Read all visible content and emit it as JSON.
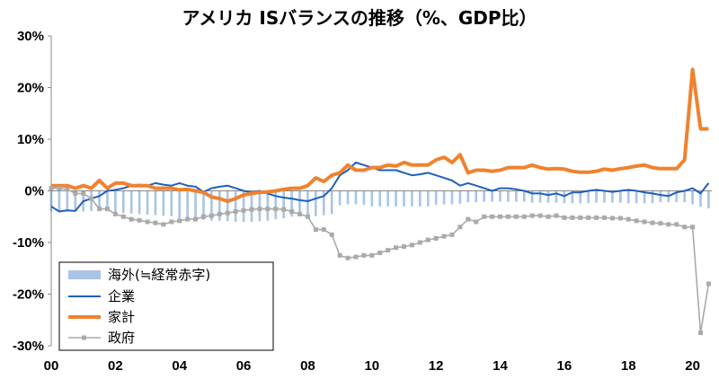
{
  "chart_data": {
    "type": "line",
    "title": "アメリカ ISバランスの推移（%、GDP比）",
    "xlabel": "",
    "ylabel": "",
    "ylim": [
      -30,
      30
    ],
    "xlim": [
      2000,
      2020.6
    ],
    "y_ticks": [
      30,
      20,
      10,
      0,
      -10,
      -20,
      -30
    ],
    "y_tick_labels": [
      "30%",
      "20%",
      "10%",
      "0%",
      "-10%",
      "-20%",
      "-30%"
    ],
    "x_ticks": [
      2000,
      2002,
      2004,
      2006,
      2008,
      2010,
      2012,
      2014,
      2016,
      2018,
      2020
    ],
    "x_tick_labels": [
      "00",
      "02",
      "04",
      "06",
      "08",
      "10",
      "12",
      "14",
      "16",
      "18",
      "20"
    ],
    "grid": false,
    "legend": {
      "placement": "bottom-left"
    },
    "series": [
      {
        "name": "海外(≒経常赤字)",
        "kind": "bar",
        "color": "#a9c4e4",
        "x": [
          2000.0,
          2000.25,
          2000.5,
          2000.75,
          2001.0,
          2001.25,
          2001.5,
          2001.75,
          2002.0,
          2002.25,
          2002.5,
          2002.75,
          2003.0,
          2003.25,
          2003.5,
          2003.75,
          2004.0,
          2004.25,
          2004.5,
          2004.75,
          2005.0,
          2005.25,
          2005.5,
          2005.75,
          2006.0,
          2006.25,
          2006.5,
          2006.75,
          2007.0,
          2007.25,
          2007.5,
          2007.75,
          2008.0,
          2008.25,
          2008.5,
          2008.75,
          2009.0,
          2009.25,
          2009.5,
          2009.75,
          2010.0,
          2010.25,
          2010.5,
          2010.75,
          2011.0,
          2011.25,
          2011.5,
          2011.75,
          2012.0,
          2012.25,
          2012.5,
          2012.75,
          2013.0,
          2013.25,
          2013.5,
          2013.75,
          2014.0,
          2014.25,
          2014.5,
          2014.75,
          2015.0,
          2015.25,
          2015.5,
          2015.75,
          2016.0,
          2016.25,
          2016.5,
          2016.75,
          2017.0,
          2017.25,
          2017.5,
          2017.75,
          2018.0,
          2018.25,
          2018.5,
          2018.75,
          2019.0,
          2019.25,
          2019.5,
          2019.75,
          2020.0,
          2020.25,
          2020.5
        ],
        "values": [
          -4.0,
          -4.0,
          -4.0,
          -4.0,
          -4.0,
          -3.9,
          -3.9,
          -3.8,
          -4.2,
          -4.3,
          -4.4,
          -4.5,
          -4.6,
          -4.7,
          -4.8,
          -4.9,
          -5.3,
          -5.4,
          -5.5,
          -5.6,
          -5.8,
          -5.8,
          -5.9,
          -6.0,
          -6.0,
          -6.0,
          -5.9,
          -5.8,
          -5.5,
          -5.3,
          -5.0,
          -4.8,
          -4.9,
          -4.9,
          -4.7,
          -4.5,
          -2.8,
          -2.6,
          -2.6,
          -2.7,
          -3.0,
          -3.0,
          -3.0,
          -3.0,
          -3.0,
          -3.0,
          -3.0,
          -3.0,
          -2.7,
          -2.6,
          -2.6,
          -2.5,
          -2.2,
          -2.2,
          -2.1,
          -2.1,
          -2.1,
          -2.1,
          -2.1,
          -2.1,
          -2.3,
          -2.3,
          -2.3,
          -2.3,
          -2.4,
          -2.4,
          -2.4,
          -2.4,
          -2.3,
          -2.3,
          -2.3,
          -2.3,
          -2.4,
          -2.4,
          -2.4,
          -2.4,
          -2.2,
          -2.2,
          -2.2,
          -2.2,
          -2.6,
          -3.1,
          -3.4
        ]
      },
      {
        "name": "企業",
        "kind": "line",
        "color": "#1f5fbd",
        "x": [
          2000.0,
          2000.25,
          2000.5,
          2000.75,
          2001.0,
          2001.25,
          2001.5,
          2001.75,
          2002.0,
          2002.25,
          2002.5,
          2002.75,
          2003.0,
          2003.25,
          2003.5,
          2003.75,
          2004.0,
          2004.25,
          2004.5,
          2004.75,
          2005.0,
          2005.25,
          2005.5,
          2005.75,
          2006.0,
          2006.25,
          2006.5,
          2006.75,
          2007.0,
          2007.25,
          2007.5,
          2007.75,
          2008.0,
          2008.25,
          2008.5,
          2008.75,
          2009.0,
          2009.25,
          2009.5,
          2009.75,
          2010.0,
          2010.25,
          2010.5,
          2010.75,
          2011.0,
          2011.25,
          2011.5,
          2011.75,
          2012.0,
          2012.25,
          2012.5,
          2012.75,
          2013.0,
          2013.25,
          2013.5,
          2013.75,
          2014.0,
          2014.25,
          2014.5,
          2014.75,
          2015.0,
          2015.25,
          2015.5,
          2015.75,
          2016.0,
          2016.25,
          2016.5,
          2016.75,
          2017.0,
          2017.25,
          2017.5,
          2017.75,
          2018.0,
          2018.25,
          2018.5,
          2018.75,
          2019.0,
          2019.25,
          2019.5,
          2019.75,
          2020.0,
          2020.25,
          2020.5
        ],
        "values": [
          -3.0,
          -4.0,
          -3.8,
          -3.9,
          -2.0,
          -1.5,
          -1.0,
          0.0,
          0.2,
          0.5,
          1.0,
          1.2,
          1.0,
          1.5,
          1.2,
          1.0,
          1.5,
          1.0,
          0.8,
          -0.2,
          0.5,
          0.8,
          1.0,
          0.5,
          0.0,
          -0.3,
          0.0,
          -0.5,
          -1.0,
          -1.3,
          -1.5,
          -1.8,
          -2.0,
          -1.5,
          -1.0,
          0.5,
          3.0,
          4.0,
          5.5,
          5.0,
          4.5,
          4.0,
          4.0,
          4.0,
          3.5,
          3.0,
          3.2,
          3.5,
          3.0,
          2.5,
          2.0,
          1.0,
          1.5,
          1.0,
          0.5,
          0.0,
          0.5,
          0.5,
          0.3,
          0.0,
          -0.5,
          -0.5,
          -0.8,
          -0.5,
          -1.0,
          -0.3,
          -0.3,
          0.0,
          0.2,
          0.0,
          -0.2,
          0.0,
          0.2,
          0.0,
          -0.3,
          -0.5,
          -0.8,
          -1.0,
          -0.3,
          0.0,
          0.5,
          -0.5,
          1.5
        ]
      },
      {
        "name": "家計",
        "kind": "line",
        "color": "#f0822e",
        "x": [
          2000.0,
          2000.25,
          2000.5,
          2000.75,
          2001.0,
          2001.25,
          2001.5,
          2001.75,
          2002.0,
          2002.25,
          2002.5,
          2002.75,
          2003.0,
          2003.25,
          2003.5,
          2003.75,
          2004.0,
          2004.25,
          2004.5,
          2004.75,
          2005.0,
          2005.25,
          2005.5,
          2005.75,
          2006.0,
          2006.25,
          2006.5,
          2006.75,
          2007.0,
          2007.25,
          2007.5,
          2007.75,
          2008.0,
          2008.25,
          2008.5,
          2008.75,
          2009.0,
          2009.25,
          2009.5,
          2009.75,
          2010.0,
          2010.25,
          2010.5,
          2010.75,
          2011.0,
          2011.25,
          2011.5,
          2011.75,
          2012.0,
          2012.25,
          2012.5,
          2012.75,
          2013.0,
          2013.25,
          2013.5,
          2013.75,
          2014.0,
          2014.25,
          2014.5,
          2014.75,
          2015.0,
          2015.25,
          2015.5,
          2015.75,
          2016.0,
          2016.25,
          2016.5,
          2016.75,
          2017.0,
          2017.25,
          2017.5,
          2017.75,
          2018.0,
          2018.25,
          2018.5,
          2018.75,
          2019.0,
          2019.25,
          2019.5,
          2019.75,
          2020.0,
          2020.25,
          2020.5
        ],
        "values": [
          1.0,
          1.0,
          1.0,
          0.5,
          1.0,
          0.5,
          2.0,
          0.5,
          1.5,
          1.5,
          1.0,
          1.0,
          1.0,
          0.5,
          0.5,
          0.5,
          0.2,
          0.3,
          0.0,
          -0.3,
          -1.2,
          -1.5,
          -2.0,
          -1.5,
          -0.8,
          -0.5,
          -0.3,
          -0.2,
          0.0,
          0.3,
          0.5,
          0.5,
          1.0,
          2.5,
          1.8,
          3.0,
          3.5,
          5.0,
          4.0,
          4.0,
          4.5,
          4.5,
          5.0,
          4.8,
          5.5,
          5.0,
          5.0,
          5.0,
          6.0,
          6.5,
          5.5,
          7.0,
          3.5,
          4.0,
          4.0,
          3.8,
          4.0,
          4.5,
          4.5,
          4.5,
          5.0,
          4.5,
          4.2,
          4.3,
          4.2,
          3.8,
          3.6,
          3.6,
          3.8,
          4.2,
          4.0,
          4.3,
          4.5,
          4.8,
          5.0,
          4.5,
          4.3,
          4.3,
          4.3,
          6.0,
          23.5,
          12.0,
          12.0
        ]
      },
      {
        "name": "政府",
        "kind": "line",
        "color": "#aaaaaa",
        "x": [
          2000.0,
          2000.25,
          2000.5,
          2000.75,
          2001.0,
          2001.25,
          2001.5,
          2001.75,
          2002.0,
          2002.25,
          2002.5,
          2002.75,
          2003.0,
          2003.25,
          2003.5,
          2003.75,
          2004.0,
          2004.25,
          2004.5,
          2004.75,
          2005.0,
          2005.25,
          2005.5,
          2005.75,
          2006.0,
          2006.25,
          2006.5,
          2006.75,
          2007.0,
          2007.25,
          2007.5,
          2007.75,
          2008.0,
          2008.25,
          2008.5,
          2008.75,
          2009.0,
          2009.25,
          2009.5,
          2009.75,
          2010.0,
          2010.25,
          2010.5,
          2010.75,
          2011.0,
          2011.25,
          2011.5,
          2011.75,
          2012.0,
          2012.25,
          2012.5,
          2012.75,
          2013.0,
          2013.25,
          2013.5,
          2013.75,
          2014.0,
          2014.25,
          2014.5,
          2014.75,
          2015.0,
          2015.25,
          2015.5,
          2015.75,
          2016.0,
          2016.25,
          2016.5,
          2016.75,
          2017.0,
          2017.25,
          2017.5,
          2017.75,
          2018.0,
          2018.25,
          2018.5,
          2018.75,
          2019.0,
          2019.25,
          2019.5,
          2019.75,
          2020.0,
          2020.25,
          2020.5
        ],
        "values": [
          0.5,
          0.5,
          0.3,
          -0.5,
          -0.5,
          -1.5,
          -3.5,
          -3.5,
          -4.5,
          -5.0,
          -5.5,
          -5.7,
          -6.0,
          -6.2,
          -6.5,
          -6.0,
          -5.8,
          -5.5,
          -5.5,
          -5.0,
          -4.8,
          -4.5,
          -4.3,
          -4.0,
          -3.8,
          -3.6,
          -3.5,
          -3.5,
          -3.5,
          -3.6,
          -4.0,
          -4.5,
          -5.0,
          -7.5,
          -7.5,
          -8.5,
          -12.5,
          -13.0,
          -12.8,
          -12.5,
          -12.5,
          -12.0,
          -11.5,
          -11.0,
          -10.8,
          -10.5,
          -10.0,
          -9.5,
          -9.2,
          -8.8,
          -8.5,
          -7.0,
          -5.5,
          -6.0,
          -5.0,
          -5.0,
          -5.0,
          -5.0,
          -5.0,
          -5.0,
          -4.8,
          -4.8,
          -5.0,
          -4.8,
          -5.2,
          -5.2,
          -5.2,
          -5.2,
          -5.2,
          -5.2,
          -5.3,
          -5.3,
          -5.5,
          -5.8,
          -6.0,
          -6.2,
          -6.3,
          -6.5,
          -6.5,
          -7.0,
          -7.0,
          -27.5,
          -18.0
        ]
      }
    ]
  }
}
